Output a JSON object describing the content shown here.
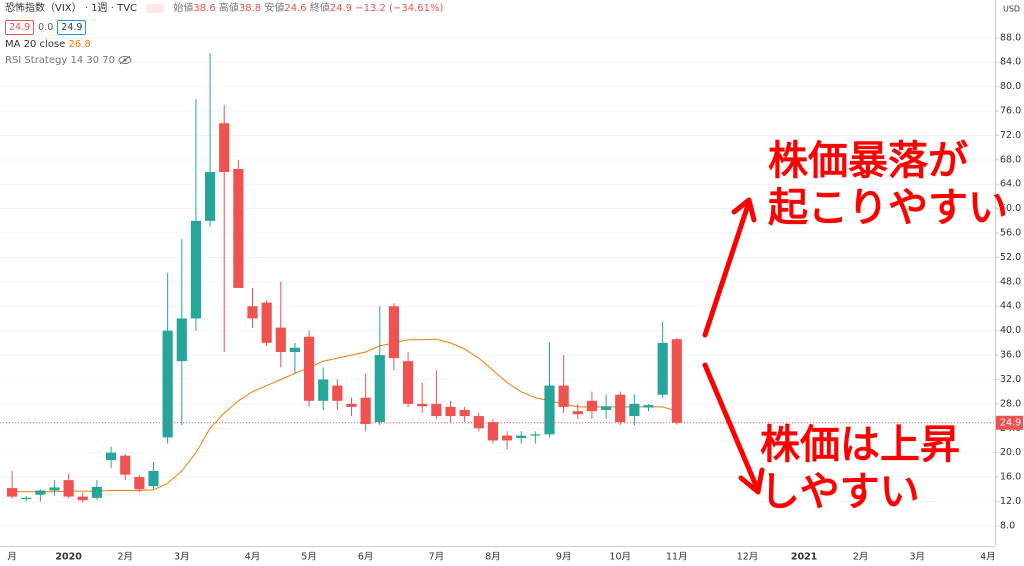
{
  "header": {
    "change": "−13.2 (−34.61%)",
    "open_label": "始値",
    "high_label": "高値",
    "low_label": "安値",
    "close_label": "終値",
    "zero": "0.0",
    "indicator": "RSI Strategy 14 30 70",
    "currency": "USD"
  },
  "chart_data": {
    "type": "candlestick",
    "title": "恐怖指数（VIX）",
    "interval": "1週",
    "source": "TVC",
    "categories": [
      "月",
      null,
      null,
      null,
      "2020",
      null,
      null,
      null,
      "2月",
      null,
      null,
      null,
      "3月",
      null,
      null,
      null,
      null,
      "4月",
      null,
      null,
      null,
      "5月",
      null,
      null,
      null,
      "6月",
      null,
      null,
      null,
      null,
      "7月",
      null,
      null,
      null,
      "8月",
      null,
      null,
      null,
      null,
      "9月",
      null,
      null,
      null,
      "10月",
      null,
      null,
      null,
      "11月",
      null,
      null,
      null,
      null,
      "12月",
      null,
      null,
      null,
      "2021",
      null,
      null,
      null,
      "2月",
      null,
      null,
      null,
      "3月",
      null,
      null,
      null,
      null,
      "4月"
    ],
    "open": [
      14.2,
      12.4,
      13.1,
      13.8,
      15.5,
      12.8,
      12.6,
      18.8,
      19.5,
      16,
      14.5,
      22.5,
      35,
      42,
      58,
      74,
      66.5,
      44,
      44.6,
      40.5,
      36.5,
      39,
      28.5,
      31,
      28,
      29,
      25,
      44,
      35,
      28,
      28,
      27.5,
      27,
      26,
      25,
      22.8,
      22.4,
      22.8,
      23,
      31,
      26.8,
      28.5,
      27,
      29.5,
      26,
      27.4,
      29.5,
      38.6,
      null,
      null,
      null,
      null,
      null,
      null,
      null,
      null,
      null,
      null,
      null,
      null,
      null,
      null,
      null,
      null,
      null,
      null,
      null,
      null,
      null,
      null
    ],
    "high": [
      17,
      12.9,
      14,
      15.5,
      16.5,
      13.5,
      15.5,
      21,
      19.8,
      16.3,
      18.5,
      49.5,
      55,
      78,
      85.5,
      77,
      68,
      47,
      45,
      48,
      38,
      40,
      34,
      32,
      29,
      33,
      44,
      44.5,
      36.5,
      31.5,
      33.5,
      28.5,
      27.5,
      26.5,
      25.5,
      23.5,
      23.5,
      23.5,
      38,
      36,
      28,
      30,
      29.5,
      30,
      29.5,
      28,
      41.5,
      38.8,
      null,
      null,
      null,
      null,
      null,
      null,
      null,
      null,
      null,
      null,
      null,
      null,
      null,
      null,
      null,
      null,
      null,
      null,
      null,
      null,
      null,
      null
    ],
    "low": [
      12.5,
      12,
      12,
      13,
      12.5,
      11.8,
      12.3,
      17.5,
      15.5,
      13.5,
      14,
      21.5,
      24.5,
      40,
      57,
      36.5,
      47,
      40.5,
      37.5,
      34,
      33,
      27.5,
      27,
      27,
      26,
      23.5,
      24.5,
      33.5,
      27.5,
      26.5,
      25.5,
      25,
      25,
      23.5,
      21.5,
      20.5,
      21.5,
      21.5,
      22.5,
      26.5,
      25.5,
      25.5,
      25.5,
      24.5,
      24.5,
      26.8,
      29,
      24.6,
      null,
      null,
      null,
      null,
      null,
      null,
      null,
      null,
      null,
      null,
      null,
      null,
      null,
      null,
      null,
      null,
      null,
      null,
      null,
      null,
      null,
      null
    ],
    "close": [
      12.8,
      12.6,
      13.8,
      14.3,
      12.8,
      12.2,
      14.4,
      20,
      16.4,
      14,
      17,
      40,
      42,
      58,
      66,
      66,
      47,
      42,
      38,
      36.5,
      37.2,
      28.5,
      32,
      28.5,
      27.5,
      24.7,
      36,
      35.5,
      28,
      27.6,
      26,
      26,
      26,
      24,
      22,
      22,
      22.8,
      23,
      31,
      27.5,
      26.3,
      26.8,
      27.6,
      25,
      28,
      27.8,
      38,
      24.9,
      null,
      null,
      null,
      null,
      null,
      null,
      null,
      null,
      null,
      null,
      null,
      null,
      null,
      null,
      null,
      null,
      null,
      null,
      null,
      null,
      null,
      null
    ],
    "up_color": "#26a69a",
    "down_color": "#ef5350",
    "series": [
      {
        "name": "MA 20 close",
        "color": "#f57c00",
        "values": [
          13.6,
          13.6,
          13.6,
          13.6,
          13.7,
          13.7,
          13.7,
          13.8,
          13.8,
          13.8,
          13.9,
          15,
          17,
          20,
          24,
          26.5,
          28.5,
          30,
          31,
          32,
          33,
          34,
          35,
          35.5,
          36,
          36.5,
          37.5,
          38,
          38.5,
          38.5,
          38.6,
          38,
          37,
          35.5,
          33.5,
          31.5,
          30,
          29,
          28.5,
          28,
          27.5,
          27.5,
          27.5,
          27.5,
          27.5,
          27.5,
          27.5,
          26.8,
          null,
          null,
          null,
          null,
          null,
          null,
          null,
          null,
          null,
          null,
          null,
          null,
          null,
          null,
          null,
          null,
          null,
          null,
          null,
          null,
          null,
          null
        ]
      }
    ],
    "ylim": [
      4.7,
      94.2
    ],
    "yticks": [
      {
        "value": 8,
        "label": "8.0"
      },
      {
        "value": 12,
        "label": "12.0"
      },
      {
        "value": 16,
        "label": "16.0"
      },
      {
        "value": 20,
        "label": "20.0"
      },
      {
        "value": 24,
        "label": "24.0"
      },
      {
        "value": 28,
        "label": "28.0"
      },
      {
        "value": 32,
        "label": "32.0"
      },
      {
        "value": 36,
        "label": "36.0"
      },
      {
        "value": 40,
        "label": "40.0"
      },
      {
        "value": 44,
        "label": "44.0"
      },
      {
        "value": 48,
        "label": "48.0"
      },
      {
        "value": 52,
        "label": "52.0"
      },
      {
        "value": 56,
        "label": "56.0"
      },
      {
        "value": 60,
        "label": "60.0"
      },
      {
        "value": 64,
        "label": "64.0"
      },
      {
        "value": 68,
        "label": "68.0"
      },
      {
        "value": 72,
        "label": "72.0"
      },
      {
        "value": 76,
        "label": "76.0"
      },
      {
        "value": 80,
        "label": "80.0"
      },
      {
        "value": 84,
        "label": "84.0"
      },
      {
        "value": 88,
        "label": "88.0"
      }
    ],
    "grid": true,
    "annotations": [
      "株価暴落が",
      "起こりやすい",
      "株価は上昇",
      "しやすい"
    ]
  }
}
